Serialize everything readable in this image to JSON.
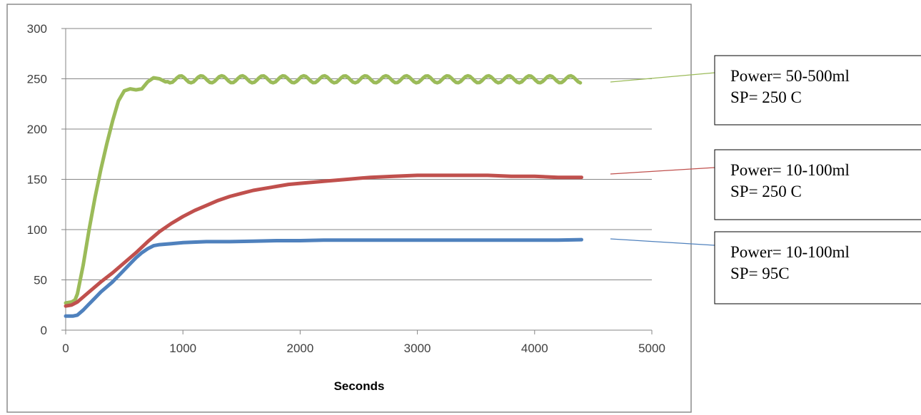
{
  "chart_data": {
    "type": "line",
    "title": "",
    "xlabel": "Seconds",
    "ylabel": "",
    "xlim": [
      0,
      5000
    ],
    "ylim": [
      0,
      300
    ],
    "xticks": [
      0,
      1000,
      2000,
      3000,
      4000,
      5000
    ],
    "yticks": [
      0,
      50,
      100,
      150,
      200,
      250,
      300
    ],
    "grid": "horizontal",
    "legend": "callouts-right",
    "series": [
      {
        "color": "#9bbb59",
        "label_lines": [
          "Power= 50-500ml",
          "SP= 250 C"
        ],
        "points": [
          [
            0,
            27
          ],
          [
            50,
            28
          ],
          [
            80,
            30
          ],
          [
            100,
            36
          ],
          [
            150,
            65
          ],
          [
            200,
            100
          ],
          [
            250,
            132
          ],
          [
            300,
            160
          ],
          [
            350,
            185
          ],
          [
            400,
            208
          ],
          [
            450,
            228
          ],
          [
            500,
            238
          ],
          [
            550,
            240
          ],
          [
            600,
            239
          ],
          [
            650,
            240
          ],
          [
            700,
            247
          ],
          [
            750,
            251
          ],
          [
            800,
            250
          ],
          [
            850,
            247
          ]
        ],
        "oscillation": {
          "start": 850,
          "end": 4400,
          "center": 249.5,
          "amplitude": 3.5,
          "period": 175
        }
      },
      {
        "color": "#c0504d",
        "label_lines": [
          "Power= 10-100ml",
          "SP= 250 C"
        ],
        "points": [
          [
            0,
            24
          ],
          [
            50,
            25
          ],
          [
            100,
            28
          ],
          [
            200,
            38
          ],
          [
            300,
            48
          ],
          [
            400,
            57
          ],
          [
            500,
            67
          ],
          [
            600,
            77
          ],
          [
            700,
            88
          ],
          [
            800,
            98
          ],
          [
            900,
            106
          ],
          [
            1000,
            113
          ],
          [
            1100,
            119
          ],
          [
            1200,
            124
          ],
          [
            1300,
            129
          ],
          [
            1400,
            133
          ],
          [
            1500,
            136
          ],
          [
            1600,
            139
          ],
          [
            1700,
            141
          ],
          [
            1800,
            143
          ],
          [
            1900,
            145
          ],
          [
            2000,
            146
          ],
          [
            2200,
            148
          ],
          [
            2400,
            150
          ],
          [
            2600,
            152
          ],
          [
            2800,
            153
          ],
          [
            3000,
            154
          ],
          [
            3200,
            154
          ],
          [
            3400,
            154
          ],
          [
            3600,
            154
          ],
          [
            3800,
            153
          ],
          [
            4000,
            153
          ],
          [
            4200,
            152
          ],
          [
            4400,
            152
          ]
        ]
      },
      {
        "color": "#4f81bd",
        "label_lines": [
          "Power= 10-100ml",
          "SP= 95C"
        ],
        "points": [
          [
            0,
            14
          ],
          [
            60,
            14
          ],
          [
            100,
            15
          ],
          [
            150,
            20
          ],
          [
            200,
            26
          ],
          [
            250,
            32
          ],
          [
            300,
            38
          ],
          [
            350,
            43
          ],
          [
            400,
            48
          ],
          [
            450,
            54
          ],
          [
            500,
            60
          ],
          [
            550,
            66
          ],
          [
            600,
            72
          ],
          [
            650,
            77
          ],
          [
            700,
            81
          ],
          [
            750,
            84
          ],
          [
            800,
            85
          ],
          [
            900,
            86
          ],
          [
            1000,
            87
          ],
          [
            1200,
            88
          ],
          [
            1400,
            88
          ],
          [
            1600,
            88.5
          ],
          [
            1800,
            89
          ],
          [
            2000,
            89
          ],
          [
            2200,
            89.5
          ],
          [
            2500,
            89.5
          ],
          [
            2800,
            89.5
          ],
          [
            3000,
            89.5
          ],
          [
            3300,
            89.5
          ],
          [
            3600,
            89.5
          ],
          [
            3800,
            89.5
          ],
          [
            4000,
            89.5
          ],
          [
            4200,
            89.5
          ],
          [
            4400,
            90
          ]
        ]
      }
    ]
  }
}
